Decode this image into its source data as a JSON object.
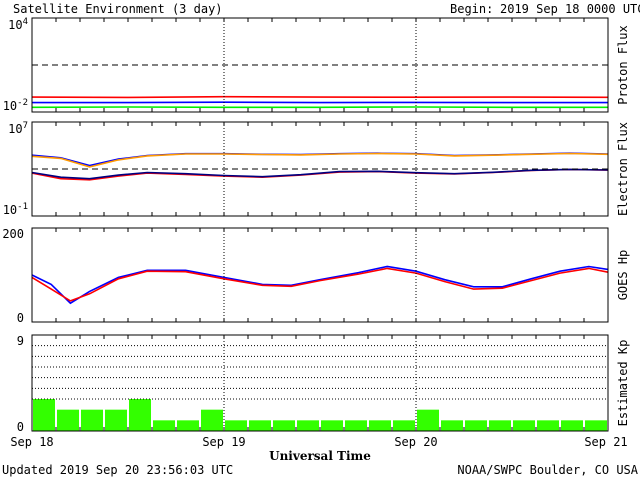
{
  "header": {
    "title": "Satellite Environment (3 day)",
    "begin_label": "Begin:",
    "begin_value": "2019 Sep 18 0000 UTC"
  },
  "footer": {
    "updated": "Updated 2019 Sep 20 23:56:03 UTC",
    "credit": "NOAA/SWPC Boulder, CO USA"
  },
  "chart_data": [
    {
      "type": "line",
      "ylabel": "Proton Flux",
      "yscale": "log",
      "ylim": [
        0.01,
        10000
      ],
      "ytick_labels": [
        {
          "base": "10",
          "exp": "4"
        },
        {
          "base": "10",
          "exp": "-2"
        }
      ],
      "threshold": 10,
      "x_days": [
        0,
        0.5,
        1,
        1.5,
        2,
        2.5,
        3
      ],
      "series": [
        {
          "color": "#ff0000",
          "y": [
            0.09,
            0.085,
            0.095,
            0.09,
            0.088,
            0.09,
            0.087
          ]
        },
        {
          "color": "#0000ff",
          "y": [
            0.04,
            0.04,
            0.042,
            0.04,
            0.041,
            0.04,
            0.04
          ]
        },
        {
          "color": "#00ee00",
          "y": [
            0.02,
            0.021,
            0.02,
            0.02,
            0.021,
            0.02,
            0.02
          ]
        }
      ]
    },
    {
      "type": "line",
      "ylabel": "Electron Flux",
      "yscale": "log",
      "ylim": [
        0.1,
        10000000
      ],
      "ytick_labels": [
        {
          "base": "10",
          "exp": "7"
        },
        {
          "base": "10",
          "exp": "-1"
        }
      ],
      "threshold": 1000,
      "x_days": [
        0,
        0.15,
        0.3,
        0.45,
        0.6,
        0.8,
        1.0,
        1.2,
        1.4,
        1.6,
        1.8,
        2.0,
        2.2,
        2.4,
        2.6,
        2.8,
        3.0
      ],
      "series": [
        {
          "color": "#0000ff",
          "y": [
            15000,
            9000,
            2000,
            7000,
            14000,
            20000,
            20000,
            18000,
            17000,
            20000,
            22000,
            20000,
            14000,
            16000,
            19000,
            22000,
            19000
          ]
        },
        {
          "color": "#ff9900",
          "y": [
            12000,
            8000,
            1500,
            6000,
            13000,
            19000,
            19000,
            17000,
            16000,
            19000,
            21000,
            19000,
            13000,
            15000,
            18000,
            21000,
            18000
          ]
        },
        {
          "color": "#ff0000",
          "y": [
            450,
            150,
            120,
            250,
            450,
            350,
            250,
            200,
            300,
            550,
            600,
            450,
            380,
            500,
            750,
            900,
            800
          ]
        },
        {
          "color": "#000080",
          "y": [
            500,
            200,
            150,
            300,
            500,
            400,
            280,
            220,
            330,
            600,
            640,
            480,
            400,
            520,
            780,
            920,
            820
          ]
        }
      ]
    },
    {
      "type": "line",
      "ylabel": "GOES Hp",
      "ylim": [
        0,
        200
      ],
      "yticks": [
        0,
        200
      ],
      "x_days": [
        0,
        0.1,
        0.2,
        0.3,
        0.45,
        0.6,
        0.8,
        1.0,
        1.2,
        1.35,
        1.5,
        1.7,
        1.85,
        2.0,
        2.15,
        2.3,
        2.45,
        2.6,
        2.75,
        2.9,
        3.0
      ],
      "series": [
        {
          "color": "#0000ff",
          "y": [
            100,
            80,
            40,
            65,
            95,
            110,
            110,
            95,
            80,
            78,
            90,
            105,
            118,
            108,
            90,
            75,
            75,
            92,
            108,
            118,
            112
          ]
        },
        {
          "color": "#ff0000",
          "y": [
            95,
            70,
            45,
            60,
            92,
            108,
            107,
            92,
            78,
            76,
            88,
            102,
            114,
            104,
            86,
            70,
            72,
            88,
            104,
            114,
            106
          ]
        }
      ]
    },
    {
      "type": "bar",
      "ylabel": "Estimated Kp",
      "ylim": [
        0,
        9
      ],
      "yticks": [
        0,
        9
      ],
      "color": "#33ff00",
      "values": [
        3,
        2,
        2,
        2,
        3,
        1,
        1,
        2,
        1,
        1,
        1,
        1,
        1,
        1,
        1,
        1,
        2,
        1,
        1,
        1,
        1,
        1,
        1,
        1
      ]
    }
  ],
  "x_axis": {
    "xlabel": "Universal Time",
    "tick_labels": [
      "Sep 18",
      "Sep 19",
      "Sep 20",
      "Sep 21"
    ]
  }
}
